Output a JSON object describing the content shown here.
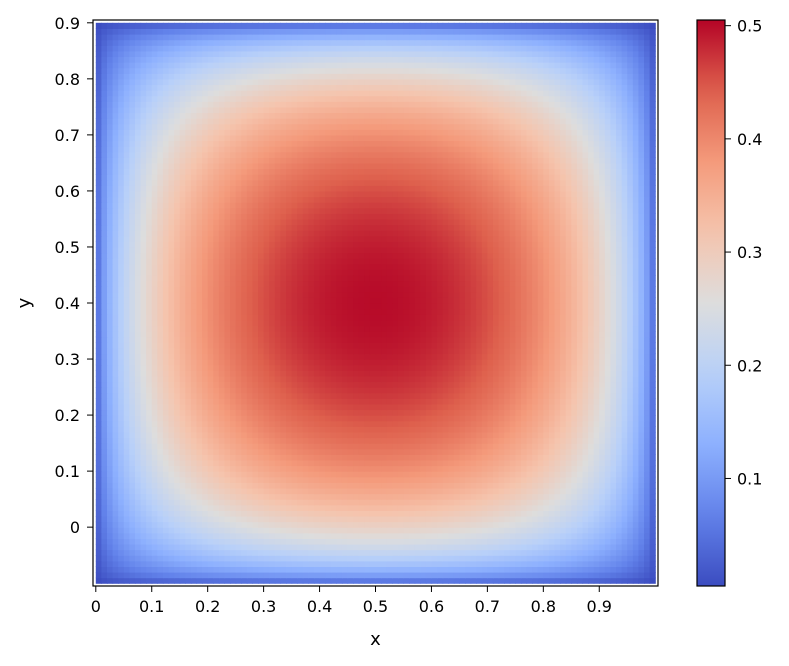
{
  "chart_data": {
    "type": "heatmap",
    "title": "",
    "xlabel": "x",
    "ylabel": "y",
    "xlim": [
      -0.005,
      1.005
    ],
    "ylim": [
      -0.105,
      0.905
    ],
    "x_ticks": [
      0,
      0.1,
      0.2,
      0.3,
      0.4,
      0.5,
      0.6,
      0.7,
      0.8,
      0.9
    ],
    "x_tick_labels": [
      "0",
      "0.1",
      "0.2",
      "0.3",
      "0.4",
      "0.5",
      "0.6",
      "0.7",
      "0.8",
      "0.9"
    ],
    "y_ticks": [
      0,
      0.1,
      0.2,
      0.3,
      0.4,
      0.5,
      0.6,
      0.7,
      0.8,
      0.9
    ],
    "y_tick_labels": [
      "0",
      "0.1",
      "0.2",
      "0.3",
      "0.4",
      "0.5",
      "0.6",
      "0.7",
      "0.8",
      "0.9"
    ],
    "grid": false,
    "colormap": "coolwarm",
    "colorbar": {
      "range": [
        0.005,
        0.505
      ],
      "ticks": [
        0.1,
        0.2,
        0.3,
        0.4,
        0.5
      ],
      "tick_labels": [
        "0.1",
        "0.2",
        "0.3",
        "0.4",
        "0.5"
      ]
    },
    "field": {
      "x_range": [
        0,
        1
      ],
      "y_range": [
        -0.1,
        0.9
      ],
      "resolution": [
        100,
        100
      ],
      "peak": {
        "x": 0.5,
        "y": 0.4,
        "value": 0.5
      },
      "edge_value": 0.0
    }
  }
}
